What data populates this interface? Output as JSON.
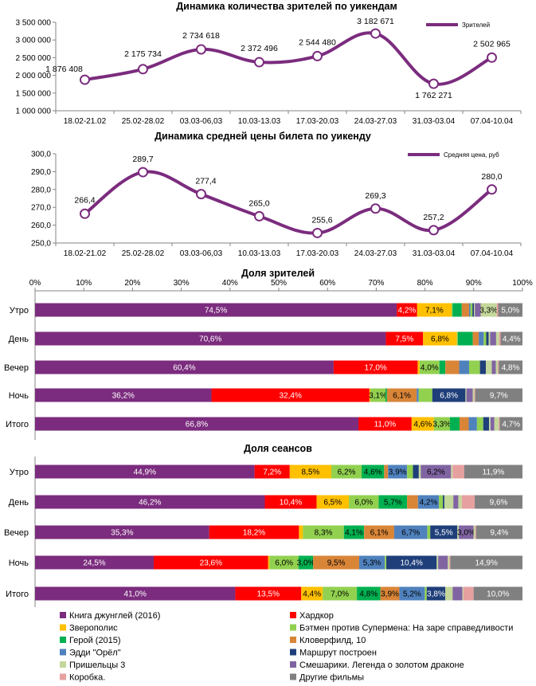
{
  "chart_data": [
    {
      "type": "line",
      "title": "Динамика количества зрителей по уикендам",
      "categories": [
        "18.02-21.02",
        "25.02-28.02",
        "03.03-06,03",
        "10.03-13.03",
        "17.03-20.03",
        "24.03-27.03",
        "31.03-03.04",
        "07.04-10.04"
      ],
      "series": [
        {
          "name": "Зрителей",
          "values": [
            1876408,
            2175734,
            2734618,
            2372496,
            2544480,
            3182671,
            1762271,
            2502965
          ],
          "value_labels": [
            "1 876 408",
            "2 175 734",
            "2 734 618",
            "2 372 496",
            "2 544 480",
            "3 182 671",
            "1 762 271",
            "2 502 965"
          ]
        }
      ],
      "ylim": [
        1000000,
        3500000
      ],
      "yticks": [
        1000000,
        1500000,
        2000000,
        2500000,
        3000000,
        3500000
      ],
      "ytick_labels": [
        "1 000 000",
        "1 500 000",
        "2 000 000",
        "2 500 000",
        "3 000 000",
        "3 500 000"
      ],
      "legend": "top-right",
      "grid": false,
      "color": "#7b2c7e"
    },
    {
      "type": "line",
      "title": "Динамика средней цены билета по уикенду",
      "categories": [
        "18.02-21.02",
        "25.02-28.02",
        "03.03-06,03",
        "10.03-13.03",
        "17.03-20.03",
        "24.03-27.03",
        "31.03-03.04",
        "07.04-10.04"
      ],
      "series": [
        {
          "name": "Средняя цена, руб",
          "values": [
            266.4,
            289.7,
            277.4,
            265.0,
            255.6,
            269.3,
            257.2,
            280.0
          ],
          "value_labels": [
            "266,4",
            "289,7",
            "277,4",
            "265,0",
            "255,6",
            "269,3",
            "257,2",
            "280,0"
          ]
        }
      ],
      "ylim": [
        250,
        300
      ],
      "yticks": [
        250,
        260,
        270,
        280,
        290,
        300
      ],
      "ytick_labels": [
        "250,0",
        "260,0",
        "270,0",
        "280,0",
        "290,0",
        "300,0"
      ],
      "legend": "top-right",
      "grid": false,
      "color": "#7b2c7e"
    },
    {
      "type": "bar",
      "orientation": "horizontal-stacked-100",
      "title": "Доля зрителей",
      "categories": [
        "Утро",
        "День",
        "Вечер",
        "Ночь",
        "Итого"
      ],
      "xticks": [
        "0%",
        "10%",
        "20%",
        "30%",
        "40%",
        "50%",
        "60%",
        "70%",
        "80%",
        "90%",
        "100%"
      ],
      "rows": [
        [
          74.5,
          4.2,
          7.1,
          0.2,
          1.9,
          1.5,
          0.3,
          0.4,
          0.3,
          0.2,
          1.2,
          3.3,
          0.3,
          5.0
        ],
        [
          70.6,
          7.5,
          6.8,
          0.2,
          3.0,
          1.2,
          1.0,
          0.5,
          0.5,
          0.3,
          1.2,
          0.6,
          0.3,
          4.4
        ],
        [
          60.4,
          17.0,
          0.4,
          4.0,
          1.2,
          2.8,
          2.0,
          2.2,
          1.2,
          1.2,
          0.8,
          0.4,
          0.2,
          4.8
        ],
        [
          36.2,
          32.4,
          0.2,
          3.1,
          0.3,
          6.1,
          0.4,
          2.8,
          6.8,
          0.2,
          1.3,
          0.3,
          0.2,
          9.7
        ],
        [
          66.8,
          11.0,
          4.6,
          3.3,
          2.0,
          1.9,
          1.7,
          1.3,
          1.2,
          0.3,
          0.8,
          0.9,
          0.2,
          4.7
        ]
      ],
      "labels": [
        [
          "74,5%",
          "4,2%",
          "7,1%",
          "",
          "",
          "",
          "",
          "",
          "",
          "",
          "",
          "3,3%",
          "",
          "5,0%"
        ],
        [
          "70,6%",
          "7,5%",
          "6,8%",
          "",
          "",
          "",
          "",
          "",
          "",
          "",
          "",
          "",
          "",
          "4,4%"
        ],
        [
          "60,4%",
          "17,0%",
          "",
          "4,0%",
          "",
          "",
          "",
          "",
          "",
          "",
          "",
          "",
          "",
          "4,8%"
        ],
        [
          "36,2%",
          "32,4%",
          "",
          "3,1%",
          "",
          "6,1%",
          "",
          "",
          "6,8%",
          "",
          "",
          "",
          "",
          "9,7%"
        ],
        [
          "66,8%",
          "11,0%",
          "4,6%",
          "3,3%",
          "",
          "",
          "",
          "",
          "",
          "",
          "",
          "",
          "",
          "4,7%"
        ]
      ]
    },
    {
      "type": "bar",
      "orientation": "horizontal-stacked-100",
      "title": "Доля сеансов",
      "categories": [
        "Утро",
        "День",
        "Вечер",
        "Ночь",
        "Итого"
      ],
      "rows": [
        [
          44.9,
          7.2,
          8.5,
          6.2,
          4.6,
          0.8,
          3.9,
          1.2,
          1.2,
          0.4,
          6.2,
          0.3,
          2.4,
          11.9
        ],
        [
          46.2,
          10.4,
          6.5,
          6.0,
          5.7,
          2.2,
          4.2,
          0.8,
          0.3,
          1.8,
          1.0,
          0.7,
          2.6,
          9.6
        ],
        [
          35.3,
          18.2,
          0.8,
          8.3,
          4.1,
          6.1,
          6.7,
          0.6,
          5.5,
          0.3,
          3.0,
          0.3,
          0.2,
          9.4
        ],
        [
          24.5,
          23.6,
          0.3,
          6.0,
          3.0,
          9.5,
          5.3,
          0.3,
          10.4,
          0.3,
          2.0,
          0.3,
          0.2,
          14.9
        ],
        [
          41.0,
          13.5,
          4.4,
          7.0,
          4.8,
          3.9,
          5.2,
          0.4,
          3.8,
          1.5,
          2.0,
          0.2,
          2.1,
          10.0
        ]
      ],
      "labels": [
        [
          "44,9%",
          "7,2%",
          "8,5%",
          "6,2%",
          "4,6%",
          "",
          "3,9%",
          "",
          "",
          "",
          "6,2%",
          "",
          "",
          "11,9%"
        ],
        [
          "46,2%",
          "10,4%",
          "6,5%",
          "6,0%",
          "5,7%",
          "",
          "4,2%",
          "",
          "",
          "",
          "",
          "",
          "",
          "9,6%"
        ],
        [
          "35,3%",
          "18,2%",
          "",
          "8,3%",
          "4,1%",
          "6,1%",
          "6,7%",
          "",
          "5,5%",
          "",
          "3,0%",
          "",
          "",
          "9,4%"
        ],
        [
          "24,5%",
          "23,6%",
          "",
          "6,0%",
          "3,0%",
          "9,5%",
          "5,3%",
          "",
          "10,4%",
          "",
          "",
          "",
          "",
          "14,9%"
        ],
        [
          "41,0%",
          "13,5%",
          "4,4%",
          "7,0%",
          "4,8%",
          "3,9%",
          "5,2%",
          "",
          "3,8%",
          "",
          "",
          "",
          "",
          "10,0%"
        ]
      ]
    }
  ],
  "legend": [
    {
      "name": "Книга джунглей (2016)",
      "color": "#7b2c7e"
    },
    {
      "name": "Хардкор",
      "color": "#ff0000"
    },
    {
      "name": "Зверополис",
      "color": "#ffc000"
    },
    {
      "name": "Бэтмен против Супермена: На заре справедливости",
      "color": "#92d050"
    },
    {
      "name": "Герой (2015)",
      "color": "#00b050"
    },
    {
      "name": "Кловерфилд, 10",
      "color": "#d98538"
    },
    {
      "name": "Эдди \"Орёл\"",
      "color": "#4f81bd"
    },
    {
      "name": "Маршрут построен",
      "color": "#1f3f7a"
    },
    {
      "name": "Пришельцы 3",
      "color": "#c4d79b"
    },
    {
      "name": "Смешарики. Легенда о золотом драконе",
      "color": "#8064a2"
    },
    {
      "name": "Коробка.",
      "color": "#e6a0a0"
    },
    {
      "name": "Другие фильмы",
      "color": "#808080"
    }
  ],
  "segment_colors": [
    "#7b2c7e",
    "#ff0000",
    "#ffc000",
    "#92d050",
    "#00b050",
    "#d98538",
    "#4f81bd",
    "#92d050",
    "#1f3f7a",
    "#c4d79b",
    "#8064a2",
    "#c4d79b",
    "#e6a0a0",
    "#808080"
  ]
}
